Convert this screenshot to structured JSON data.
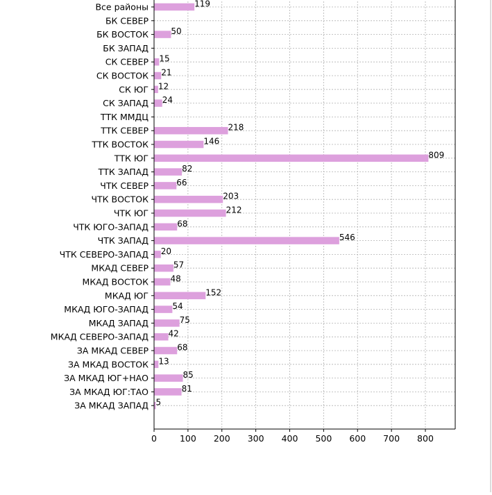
{
  "chart_data": {
    "type": "bar",
    "orientation": "horizontal",
    "categories": [
      "Все районы",
      "БК СЕВЕР",
      "БК ВОСТОК",
      "БК ЗАПАД",
      "СК СЕВЕР",
      "СК ВОСТОК",
      "СК ЮГ",
      "СК ЗАПАД",
      "ТТК ММДЦ",
      "ТТК СЕВЕР",
      "ТТК ВОСТОК",
      "ТТК ЮГ",
      "ТТК ЗАПАД",
      "ЧТК СЕВЕР",
      "ЧТК ВОСТОК",
      "ЧТК ЮГ",
      "ЧТК ЮГО-ЗАПАД",
      "ЧТК ЗАПАД",
      "ЧТК СЕВЕРО-ЗАПАД",
      "МКАД СЕВЕР",
      "МКАД ВОСТОК",
      "МКАД ЮГ",
      "МКАД ЮГО-ЗАПАД",
      "МКАД ЗАПАД",
      "МКАД СЕВЕРО-ЗАПАД",
      "ЗА МКАД СЕВЕР",
      "ЗА МКАД ВОСТОК",
      "ЗА МКАД ЮГ+НАО",
      "ЗА МКАД ЮГ:ТАО",
      "ЗА МКАД ЗАПАД"
    ],
    "values": [
      119,
      null,
      50,
      null,
      15,
      21,
      12,
      24,
      null,
      218,
      146,
      809,
      82,
      66,
      203,
      212,
      68,
      546,
      20,
      57,
      48,
      152,
      54,
      75,
      42,
      68,
      13,
      85,
      81,
      5
    ],
    "xticks": [
      0,
      100,
      200,
      300,
      400,
      500,
      600,
      700,
      800
    ],
    "xlim": [
      0,
      888
    ],
    "grid": true,
    "bar_color": "#dda0dd",
    "grid_color": "#b0b0b0"
  }
}
